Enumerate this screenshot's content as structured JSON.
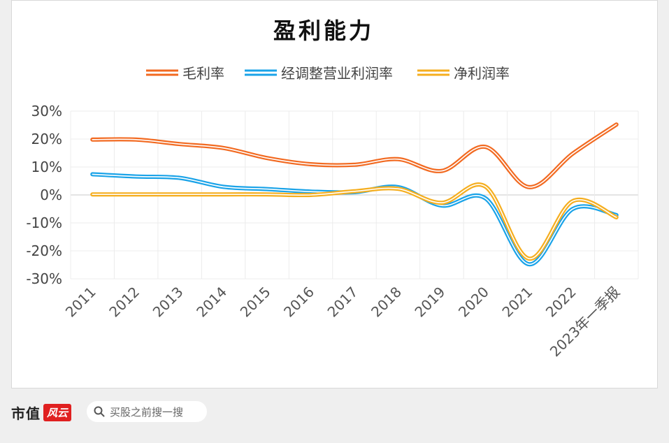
{
  "chart_data": {
    "type": "line",
    "title": "盈利能力",
    "categories": [
      "2011",
      "2012",
      "2013",
      "2014",
      "2015",
      "2016",
      "2017",
      "2018",
      "2019",
      "2020",
      "2021",
      "2022",
      "2023年一季报"
    ],
    "y_ticks": [
      "30%",
      "20%",
      "10%",
      "0%",
      "-10%",
      "-20%",
      "-30%"
    ],
    "ylim": [
      -30,
      30
    ],
    "y_unit": "%",
    "grid": true,
    "legend_position": "top",
    "series": [
      {
        "name": "毛利率",
        "color": "#f26a21",
        "values": [
          19.8,
          19.8,
          18.2,
          16.8,
          13.2,
          11.0,
          10.8,
          12.8,
          8.6,
          17.2,
          2.8,
          14.8,
          25.2
        ]
      },
      {
        "name": "经调整营业利润率",
        "color": "#1aa3e8",
        "values": [
          7.4,
          6.6,
          6.1,
          2.9,
          2.1,
          1.2,
          1.0,
          2.8,
          -3.8,
          -1.2,
          -24.8,
          -5.0,
          -7.2
        ]
      },
      {
        "name": "净利润率",
        "color": "#f5ae1f",
        "values": [
          0.2,
          0.2,
          0.2,
          0.2,
          0.2,
          0.0,
          1.3,
          2.2,
          -2.8,
          3.0,
          -22.8,
          -2.2,
          -8.0
        ]
      }
    ]
  },
  "footer": {
    "brand_text": "市值",
    "brand_badge": "风云",
    "search_icon": "search-icon",
    "search_label": "买股之前搜一搜"
  }
}
